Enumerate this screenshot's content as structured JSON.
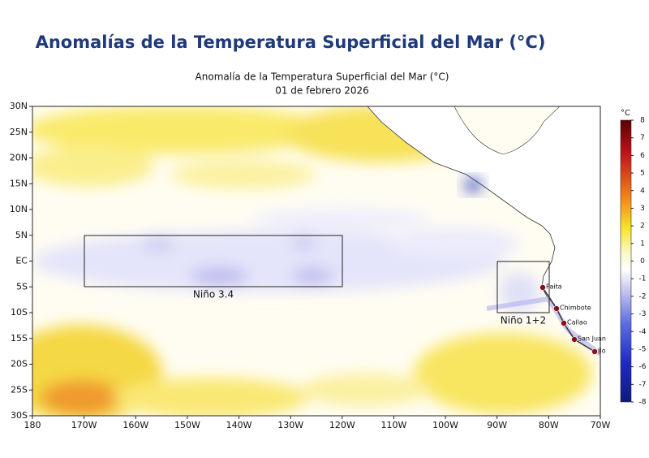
{
  "header": {
    "title": "Anomalías de la Temperatura Superficial del Mar (°C)"
  },
  "map": {
    "title": "Anomalía de la Temperatura Superficial del Mar (°C)",
    "subtitle": "01 de febrero 2026",
    "lat_labels": [
      "30N",
      "25N",
      "20N",
      "15N",
      "10N",
      "5N",
      "EC",
      "5S",
      "10S",
      "15S",
      "20S",
      "25S",
      "30S"
    ],
    "lon_labels": [
      "180",
      "170W",
      "160W",
      "150W",
      "140W",
      "130W",
      "120W",
      "110W",
      "100W",
      "90W",
      "80W",
      "70W"
    ],
    "regions": [
      {
        "label": "Niño 3.4"
      },
      {
        "label": "Niño 1+2"
      }
    ],
    "cities": [
      {
        "label": "Paita"
      },
      {
        "label": "Chimbote"
      },
      {
        "label": "Callao"
      },
      {
        "label": "San Juan"
      },
      {
        "label": "Ilo"
      }
    ]
  },
  "colorbar": {
    "unit": "°C",
    "ticks": [
      8,
      7,
      6,
      5,
      4,
      3,
      2,
      1,
      0,
      -1,
      -2,
      -3,
      -4,
      -5,
      -6,
      -7,
      -8
    ]
  }
}
